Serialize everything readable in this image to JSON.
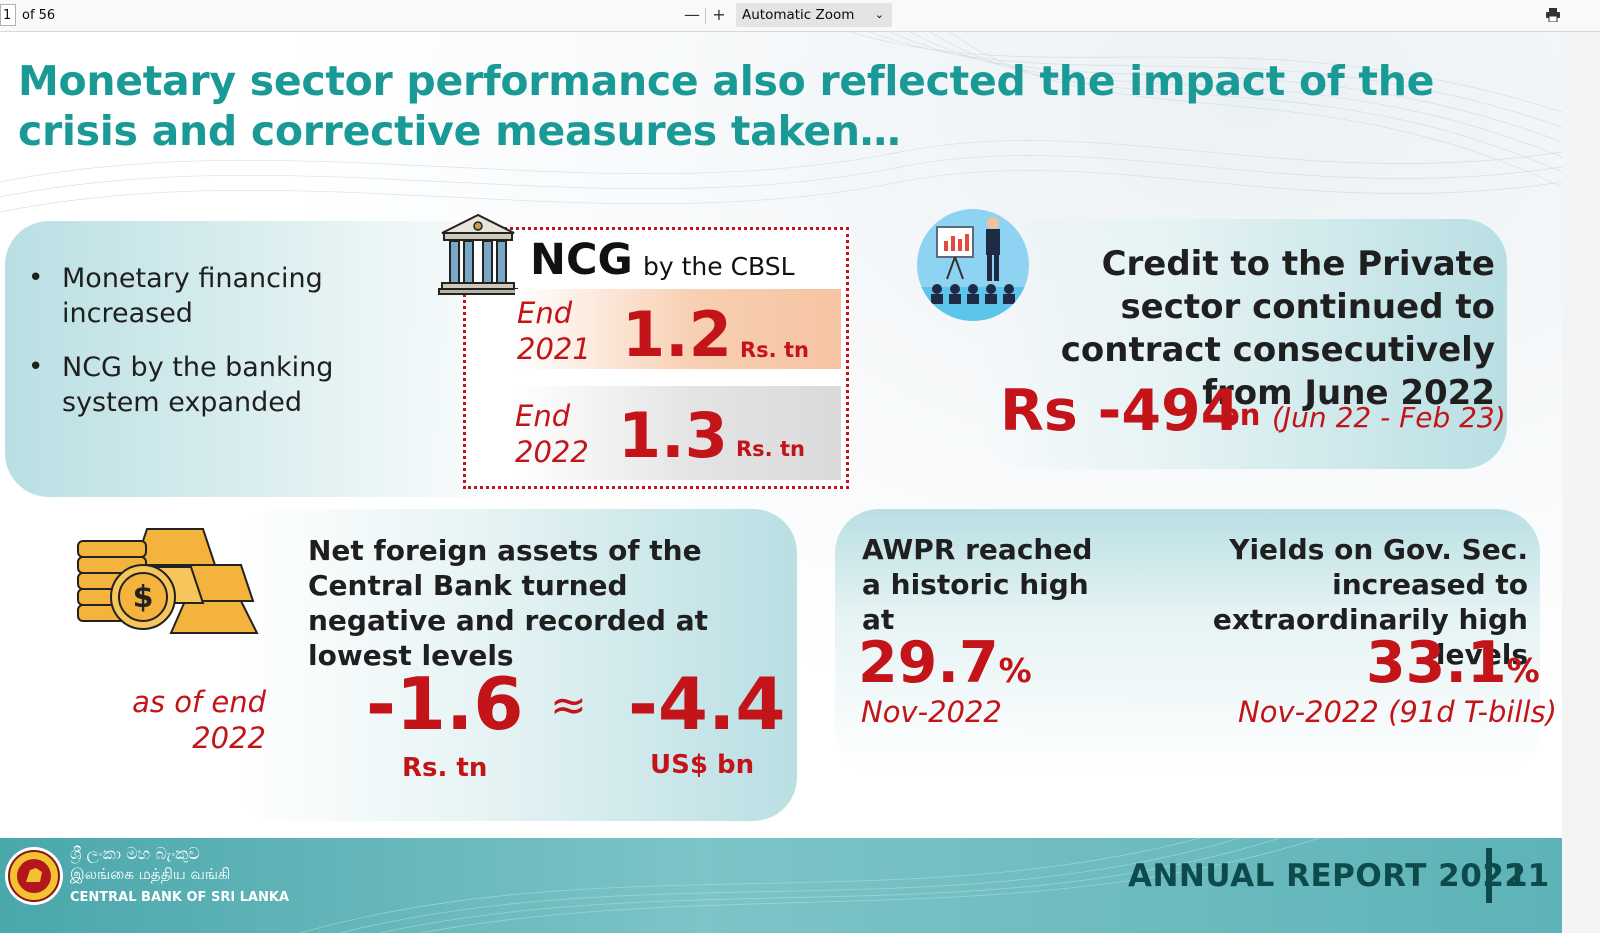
{
  "viewer": {
    "page_number": "1",
    "page_count": "of 56",
    "zoom_out": "—",
    "zoom_in": "+",
    "zoom_label": "Automatic Zoom",
    "zoom_chevron": "⌄"
  },
  "slide": {
    "headline": "Monetary sector performance also reflected the impact of the crisis and corrective measures taken…",
    "monetary": {
      "bullets": [
        "Monetary financing increased",
        "NCG by the banking system expanded"
      ]
    },
    "ncg": {
      "title": "NCG",
      "subtitle": "by the CBSL",
      "rows": [
        {
          "label": "End 2021",
          "value": "1.2",
          "unit": "Rs. tn"
        },
        {
          "label": "End 2022",
          "value": "1.3",
          "unit": "Rs. tn"
        }
      ]
    },
    "credit": {
      "text": "Credit to the Private sector continued to contract consecutively from June 2022",
      "value": "Rs -494",
      "unit": "bn",
      "period": "(Jun 22 - Feb 23)"
    },
    "nfa": {
      "text": "Net foreign assets of the Central Bank turned negative and recorded at lowest levels",
      "asof": "as of end 2022",
      "value_rs": "-1.6",
      "unit_rs": "Rs. tn",
      "approx": "≈",
      "value_usd": "-4.4",
      "unit_usd": "US$ bn"
    },
    "awpr": {
      "text": "AWPR reached a historic high at",
      "value": "29.7",
      "pct": "%",
      "date": "Nov-2022"
    },
    "yields": {
      "text": "Yields on Gov. Sec. increased to extraordinarily high levels",
      "value": "33.1",
      "pct": "%",
      "date": "Nov-2022 (91d T-bills)"
    },
    "footer": {
      "bank_sinhala": "ශ්‍රී ලංකා මහ බැංකුව",
      "bank_tamil": "இலங்கை மத்திய வங்கி",
      "bank_english": "CENTRAL BANK OF SRI LANKA",
      "report": "ANNUAL REPORT 2022",
      "page": "11"
    },
    "colors": {
      "teal": "#1a9a96",
      "red": "#c3141a",
      "panel": "#b9dfe3",
      "footer_text": "#0d4a4c"
    }
  }
}
